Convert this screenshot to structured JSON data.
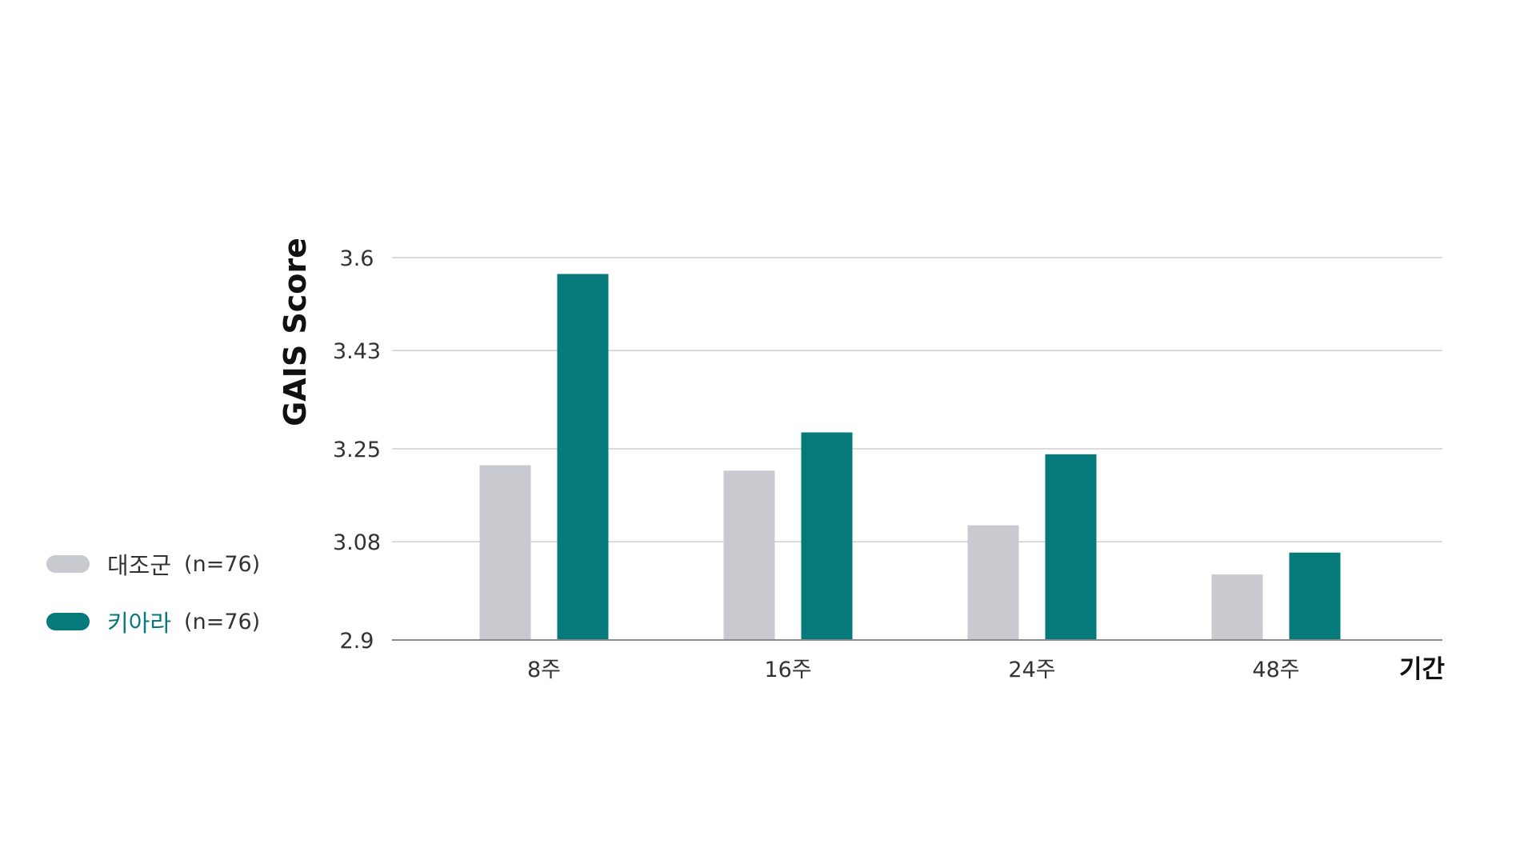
{
  "colors": {
    "control": "#c9cacf",
    "treatment": "#067a7b",
    "grid": "#b7b7b7",
    "axis": "#8a8a8a",
    "treatment_label": "#067a7b"
  },
  "legend": [
    {
      "name": "대조군",
      "n": "(n=76)",
      "swatch": "#c9cacf",
      "text_color": "#333333"
    },
    {
      "name": "키아라",
      "n": "(n=76)",
      "swatch": "#067a7b",
      "text_color": "#067a7b"
    }
  ],
  "chart_data": {
    "type": "bar",
    "title": "",
    "xlabel": "기간",
    "ylabel": "GAIS Score",
    "categories": [
      "8주",
      "16주",
      "24주",
      "48주"
    ],
    "series": [
      {
        "name": "대조군",
        "values": [
          3.22,
          3.21,
          3.11,
          3.02
        ]
      },
      {
        "name": "키아라",
        "values": [
          3.57,
          3.28,
          3.24,
          3.06
        ]
      }
    ],
    "ylim": [
      2.9,
      3.6
    ],
    "yticks": [
      "3.6",
      "3.43",
      "3.25",
      "3.08",
      "2.9"
    ],
    "grid": true
  }
}
